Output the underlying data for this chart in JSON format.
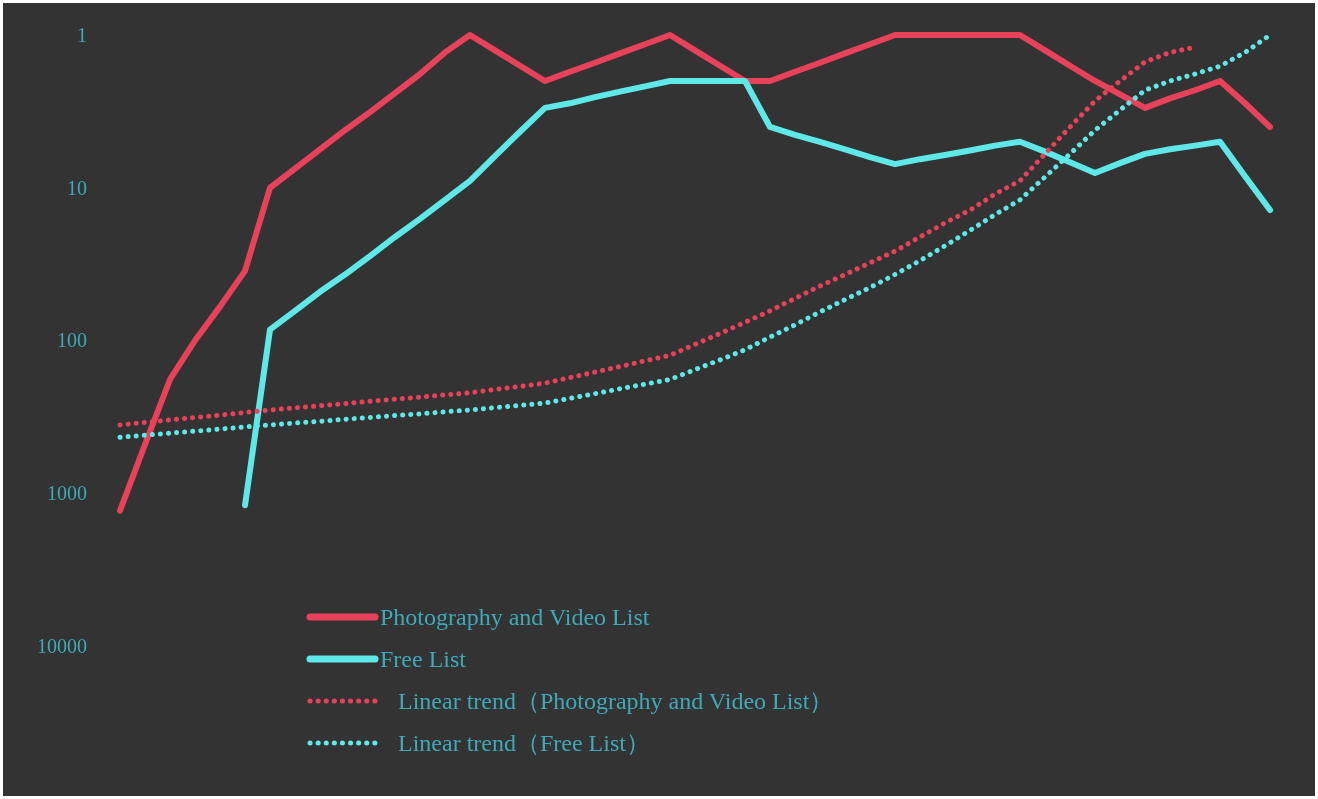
{
  "chart_data": {
    "type": "line",
    "log": "y",
    "ylim": [
      10000,
      1
    ],
    "yticks": [
      1,
      10,
      100,
      1000,
      10000
    ],
    "tick_labels": "y",
    "legend": "bottom",
    "categories": [
      null,
      null,
      null,
      null,
      null,
      null,
      null,
      null,
      null,
      null,
      null,
      null,
      null,
      null,
      null,
      null,
      null,
      null,
      null,
      null,
      null,
      null,
      null,
      null,
      null,
      null,
      null,
      null,
      null,
      null,
      null,
      null,
      null,
      null,
      null,
      null,
      null,
      null,
      null,
      null,
      null,
      null,
      null,
      null,
      null,
      null,
      null
    ],
    "series": [
      {
        "name": "Photography and Video List",
        "color": "#e8415a",
        "line_style": "solid",
        "values": [
          1300,
          480,
          180,
          100,
          60,
          35,
          10,
          7.5,
          5.6,
          4.2,
          3.2,
          2.4,
          1.8,
          1.3,
          1,
          1.26,
          1.59,
          2,
          1.74,
          1.52,
          1.32,
          1.15,
          1,
          1.26,
          1.59,
          2,
          2,
          1.74,
          1.52,
          1.32,
          1.15,
          1,
          1,
          1,
          1,
          1,
          1,
          1.26,
          1.59,
          2,
          2.45,
          3,
          2.6,
          2.3,
          2,
          2.8,
          4
        ]
      },
      {
        "name": "Free List",
        "color": "#5ee8e8",
        "line_style": "solid",
        "values": [
          null,
          null,
          null,
          null,
          null,
          1200,
          85,
          64,
          48,
          37,
          28,
          21,
          16,
          12,
          9,
          6.2,
          4.3,
          3,
          2.8,
          2.55,
          2.35,
          2.17,
          2,
          2,
          2,
          2,
          4,
          4.5,
          5,
          5.6,
          6.3,
          7,
          6.5,
          6.1,
          5.7,
          5.3,
          5,
          5.8,
          6.8,
          8,
          6.9,
          6,
          5.6,
          5.3,
          5,
          8.4,
          14
        ]
      },
      {
        "name": "Linear trend（Photography and Video List）",
        "color": "#e8415a",
        "line_style": "dotted",
        "values": [
          357,
          344,
          331,
          319,
          308,
          296,
          285,
          276,
          267,
          259,
          250,
          242,
          235,
          227,
          220,
          209,
          200,
          190,
          175,
          161,
          148,
          136,
          125,
          106,
          90,
          76,
          64,
          53,
          44,
          37,
          31,
          26,
          21,
          17,
          14,
          11,
          9,
          6,
          4,
          2.7,
          2,
          1.5,
          1.3,
          1.2,
          null,
          null,
          null
        ]
      },
      {
        "name": "Linear trend（Free List）",
        "color": "#5ee8e8",
        "line_style": "dotted",
        "values": [
          430,
          417,
          404,
          392,
          380,
          368,
          357,
          347,
          338,
          328,
          319,
          310,
          302,
          293,
          285,
          275,
          266,
          257,
          239,
          223,
          207,
          193,
          180,
          155,
          134,
          115,
          95,
          79,
          65,
          54,
          45,
          37,
          30,
          24,
          19,
          15,
          12,
          8.5,
          6,
          4.2,
          3.1,
          2.3,
          2,
          1.8,
          1.6,
          1.3,
          1
        ]
      }
    ]
  }
}
